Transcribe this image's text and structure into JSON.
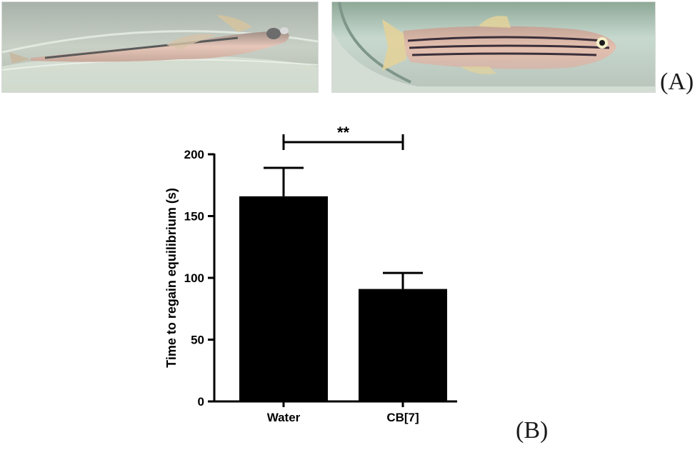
{
  "figure": {
    "panel_a_label": "(A)",
    "panel_b_label": "(B)"
  },
  "photos": [
    {
      "subject": "zebrafish-lying-on-side"
    },
    {
      "subject": "zebrafish-upright"
    }
  ],
  "chart_data": {
    "type": "bar",
    "categories": [
      "Water",
      "CB[7]"
    ],
    "values": [
      166,
      91
    ],
    "error_upper": [
      189,
      104
    ],
    "ylabel": "Time to regain equilibrium (s)",
    "xlabel": "",
    "ylim": [
      0,
      200
    ],
    "yticks": [
      0,
      50,
      100,
      150,
      200
    ],
    "bar_color": "#000000",
    "grid": false,
    "significance": {
      "label": "**",
      "between": [
        0,
        1
      ]
    }
  }
}
